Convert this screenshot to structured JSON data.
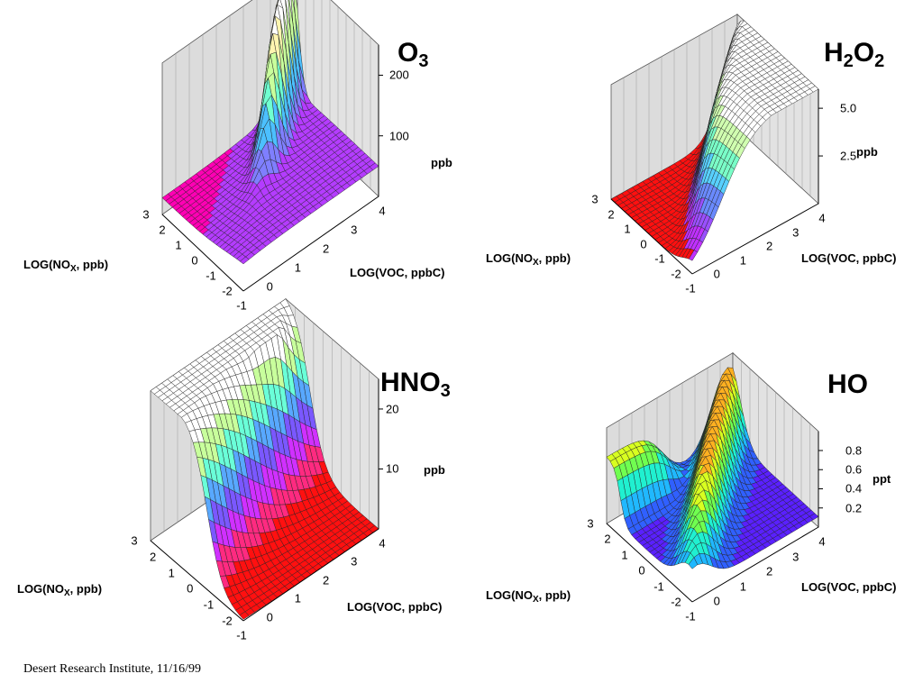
{
  "footer": "Desert Research Institute, 11/16/99",
  "chart_data": [
    {
      "type": "surface3d",
      "title_main": "O",
      "title_sub": "3",
      "xlabel_main": "LOG(NO",
      "xlabel_sub": "X",
      "xlabel_rest": ", ppb)",
      "ylabel": "LOG(VOC, ppbC)",
      "zunit": "ppb",
      "x_ticks": [
        "3",
        "2",
        "1",
        "0",
        "-1",
        "-2"
      ],
      "y_ticks": [
        "4",
        "3",
        "2",
        "1",
        "0",
        "-1"
      ],
      "z_ticks": [
        "200",
        "100"
      ],
      "xlim": [
        -2,
        3
      ],
      "ylim": [
        -1,
        4
      ],
      "zlim": [
        0,
        250
      ],
      "surface": "ridge",
      "colormap": [
        "#ff00b4",
        "#b43cff",
        "#7f7fff",
        "#4cc0ff",
        "#6fffd0",
        "#c8ff9c",
        "#fff5b0",
        "#ffffff"
      ]
    },
    {
      "type": "surface3d",
      "title_main": "H",
      "title_sub": "2",
      "title_main2": "O",
      "title_sub2": "2",
      "xlabel_main": "LOG(NO",
      "xlabel_sub": "X",
      "xlabel_rest": ", ppb)",
      "ylabel": "LOG(VOC, ppbC)",
      "zunit": "ppb",
      "x_ticks": [
        "3",
        "2",
        "1",
        "0",
        "-1",
        "-2"
      ],
      "y_ticks": [
        "4",
        "3",
        "2",
        "1",
        "0",
        "-1"
      ],
      "z_ticks": [
        "5.0",
        "2.5"
      ],
      "xlim": [
        -2,
        3
      ],
      "ylim": [
        -1,
        4
      ],
      "zlim": [
        0,
        6
      ],
      "surface": "cliff",
      "colormap": [
        "#ff1010",
        "#c030ff",
        "#9a50ff",
        "#6a8aff",
        "#58d0ff",
        "#7affc8",
        "#d0ffb0",
        "#ffffff"
      ]
    },
    {
      "type": "surface3d",
      "title_main": "HNO",
      "title_sub": "3",
      "xlabel_main": "LOG(NO",
      "xlabel_sub": "X",
      "xlabel_rest": ", ppb)",
      "ylabel": "LOG(VOC, ppbC)",
      "zunit": "ppb",
      "x_ticks": [
        "3",
        "2",
        "1",
        "0",
        "-1",
        "-2"
      ],
      "y_ticks": [
        "4",
        "3",
        "2",
        "1",
        "0",
        "-1"
      ],
      "z_ticks": [
        "20",
        "10"
      ],
      "xlim": [
        -2,
        3
      ],
      "ylim": [
        -1,
        4
      ],
      "zlim": [
        0,
        25
      ],
      "surface": "plateau",
      "colormap": [
        "#ff1010",
        "#ff2a80",
        "#d030ff",
        "#7a58ff",
        "#58a8ff",
        "#6affd8",
        "#c8ff9c",
        "#ffffff"
      ]
    },
    {
      "type": "surface3d",
      "title_main": "HO",
      "title_sub": "",
      "xlabel_main": "LOG(NO",
      "xlabel_sub": "X",
      "xlabel_rest": ", ppb)",
      "ylabel": "LOG(VOC, ppbC)",
      "zunit": "ppt",
      "x_ticks": [
        "3",
        "2",
        "1",
        "0",
        "-1",
        "-2"
      ],
      "y_ticks": [
        "4",
        "3",
        "2",
        "1",
        "0",
        "-1"
      ],
      "z_ticks": [
        "0.8",
        "0.6",
        "0.4",
        "0.2"
      ],
      "xlim": [
        -2,
        3
      ],
      "ylim": [
        -1,
        4
      ],
      "zlim": [
        0,
        1
      ],
      "surface": "hump",
      "colormap": [
        "#5a20ff",
        "#3060ff",
        "#20b8ff",
        "#20f0d0",
        "#70ff50",
        "#d8ff20",
        "#ffb020",
        "#ff6010"
      ]
    }
  ]
}
